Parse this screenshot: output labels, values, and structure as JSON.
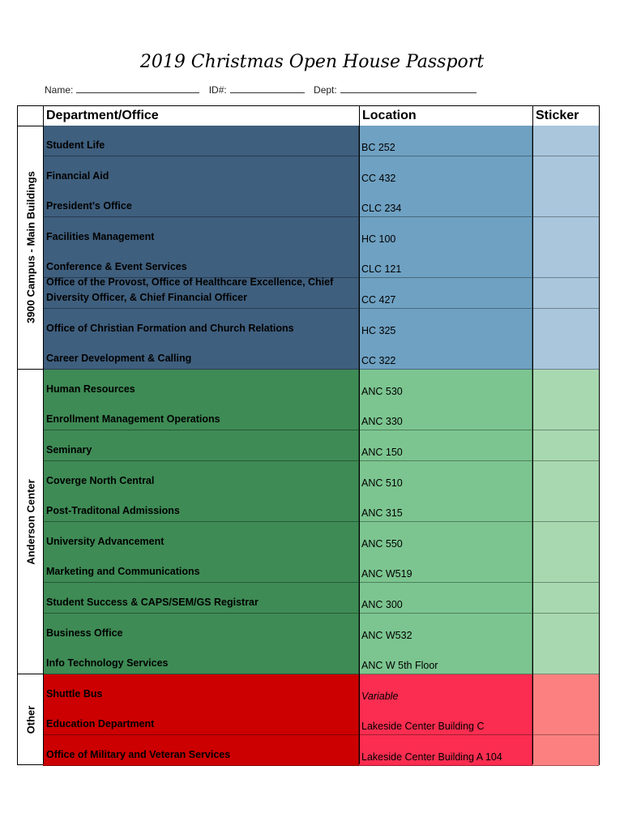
{
  "title": "2019 Christmas Open House Passport",
  "form": {
    "name_label": "Name:",
    "id_label": "ID#:",
    "dept_label": "Dept:"
  },
  "headers": {
    "department": "Department/Office",
    "location": "Location",
    "sticker": "Sticker"
  },
  "groups": [
    {
      "label": "3900 Campus - Main Buildings",
      "colors": {
        "dept": "#3f5f7e",
        "loc": "#6fa1c2",
        "sticker": "#a9c6dc"
      },
      "rows": [
        {
          "dept": "Student Life",
          "location": "BC 252"
        },
        {
          "dept": "Financial Aid",
          "location": "CC 432"
        },
        {
          "dept": "President's Office",
          "location": "CLC 234"
        },
        {
          "dept": "Facilities Management",
          "location": "HC 100"
        },
        {
          "dept": "Conference & Event Services",
          "location": "CLC 121"
        },
        {
          "dept": "Office of the Provost, Office of Healthcare Excellence, Chief Diversity Officer, & Chief Financial Officer",
          "location": "CC 427"
        },
        {
          "dept": "Office of Christian Formation and Church Relations",
          "location": "HC 325"
        },
        {
          "dept": "Career Development & Calling",
          "location": "CC 322"
        }
      ]
    },
    {
      "label": "Anderson Center",
      "colors": {
        "dept": "#3e8b55",
        "loc": "#7cc590",
        "sticker": "#a8d8b0"
      },
      "rows": [
        {
          "dept": "Human Resources",
          "location": "ANC 530"
        },
        {
          "dept": "Enrollment Management Operations",
          "location": "ANC 330"
        },
        {
          "dept": "Seminary",
          "location": "ANC 150"
        },
        {
          "dept": "Coverge North Central",
          "location": "ANC 510"
        },
        {
          "dept": "Post-Traditonal Admissions",
          "location": "ANC 315"
        },
        {
          "dept": "University Advancement",
          "location": "ANC 550"
        },
        {
          "dept": "Marketing and Communications",
          "location": "ANC W519"
        },
        {
          "dept": "Student Success & CAPS/SEM/GS Registrar",
          "location": "ANC 300"
        },
        {
          "dept": "Business Office",
          "location": "ANC W532"
        },
        {
          "dept": "Info Technology Services",
          "location": "ANC W 5th Floor"
        }
      ]
    },
    {
      "label": "Other",
      "colors": {
        "dept": "#cc0000",
        "loc": "#fb2d50",
        "sticker": "#fd8080"
      },
      "rows": [
        {
          "dept": "Shuttle Bus",
          "location": "Variable",
          "italic": true
        },
        {
          "dept": "Education Department",
          "location": "Lakeside Center Building C"
        },
        {
          "dept": "Office of Military and Veteran Services",
          "location": "Lakeside Center Building  A 104"
        }
      ]
    }
  ]
}
